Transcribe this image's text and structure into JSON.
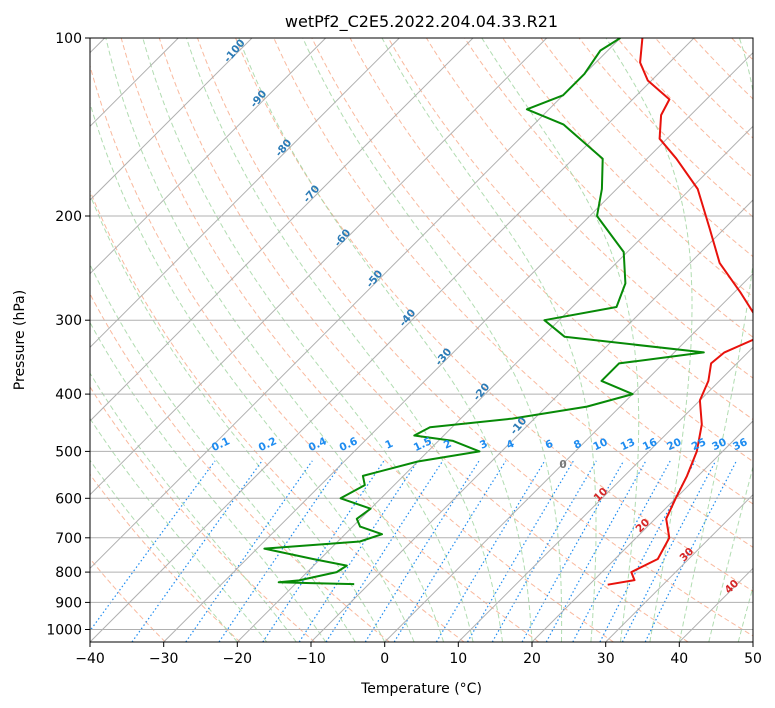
{
  "chart_data": {
    "type": "line",
    "title": "wetPf2_C2E5.2022.204.04.33.R21",
    "xlabel": "Temperature (°C)",
    "ylabel": "Pressure (hPa)",
    "xlim": [
      -40,
      50
    ],
    "ylim": [
      1050,
      100
    ],
    "y_scale": "log",
    "skew": "skew-T log-P",
    "grid": true,
    "x_ticks": [
      -40,
      -30,
      -20,
      -10,
      0,
      10,
      20,
      30,
      40,
      50
    ],
    "y_ticks": [
      1000,
      900,
      800,
      700,
      600,
      500,
      400,
      300,
      200,
      100
    ],
    "mixing_ratio_labels": [
      "0.1",
      "0.2",
      "0.4",
      "0.6",
      "1",
      "1.5",
      "2",
      "3",
      "4",
      "6",
      "8",
      "10",
      "13",
      "16",
      "20",
      "25",
      "30",
      "36"
    ],
    "dry_adiabat_labels": [
      "-100",
      "-90",
      "-80",
      "-70",
      "-60",
      "-50",
      "-40",
      "-30",
      "-20",
      "-10"
    ],
    "moist_adiabat_labels": [
      "10",
      "20",
      "30",
      "40"
    ],
    "zero_label": "0",
    "colors": {
      "temperature": "#e8120c",
      "dewpoint": "#078a07",
      "grid": "#b0b0b0",
      "dry_adiabat": "#f7a886",
      "moist_adiabat": "#a3d6a3",
      "mixing_ratio": "#1e8cf0"
    },
    "series": [
      {
        "points": [
          {
            "p": 840,
            "t": 22.5
          },
          {
            "p": 825,
            "t": 25.5
          },
          {
            "p": 800,
            "t": 24
          },
          {
            "p": 760,
            "t": 25.8
          },
          {
            "p": 700,
            "t": 24.5
          },
          {
            "p": 650,
            "t": 21.5
          },
          {
            "p": 600,
            "t": 20
          },
          {
            "p": 550,
            "t": 18.5
          },
          {
            "p": 500,
            "t": 16.5
          },
          {
            "p": 450,
            "t": 13.5
          },
          {
            "p": 410,
            "t": 10
          },
          {
            "p": 380,
            "t": 8.5
          },
          {
            "p": 355,
            "t": 6.5
          },
          {
            "p": 340,
            "t": 6.8
          },
          {
            "p": 320,
            "t": 9.5
          },
          {
            "p": 300,
            "t": 7
          },
          {
            "p": 270,
            "t": 1
          },
          {
            "p": 240,
            "t": -6
          },
          {
            "p": 210,
            "t": -12
          },
          {
            "p": 180,
            "t": -19
          },
          {
            "p": 160,
            "t": -26
          },
          {
            "p": 148,
            "t": -31
          },
          {
            "p": 135,
            "t": -34
          },
          {
            "p": 127,
            "t": -35
          },
          {
            "p": 118,
            "t": -40.5
          },
          {
            "p": 110,
            "t": -44
          },
          {
            "p": 100,
            "t": -47
          }
        ]
      },
      {
        "points": [
          {
            "p": 838,
            "t": -12
          },
          {
            "p": 835,
            "t": -18
          },
          {
            "p": 832,
            "t": -22.5
          },
          {
            "p": 826,
            "t": -20
          },
          {
            "p": 800,
            "t": -16
          },
          {
            "p": 780,
            "t": -15.5
          },
          {
            "p": 760,
            "t": -21
          },
          {
            "p": 730,
            "t": -29
          },
          {
            "p": 710,
            "t": -17
          },
          {
            "p": 690,
            "t": -15
          },
          {
            "p": 670,
            "t": -19
          },
          {
            "p": 650,
            "t": -20.5
          },
          {
            "p": 625,
            "t": -20
          },
          {
            "p": 600,
            "t": -25.5
          },
          {
            "p": 570,
            "t": -24
          },
          {
            "p": 550,
            "t": -25.5
          },
          {
            "p": 520,
            "t": -20
          },
          {
            "p": 500,
            "t": -13
          },
          {
            "p": 480,
            "t": -18
          },
          {
            "p": 470,
            "t": -24
          },
          {
            "p": 455,
            "t": -23
          },
          {
            "p": 440,
            "t": -13
          },
          {
            "p": 420,
            "t": -4.5
          },
          {
            "p": 400,
            "t": 0
          },
          {
            "p": 380,
            "t": -6
          },
          {
            "p": 355,
            "t": -6
          },
          {
            "p": 340,
            "t": 4
          },
          {
            "p": 320,
            "t": -17
          },
          {
            "p": 300,
            "t": -22
          },
          {
            "p": 285,
            "t": -14
          },
          {
            "p": 260,
            "t": -16
          },
          {
            "p": 230,
            "t": -20.5
          },
          {
            "p": 200,
            "t": -29
          },
          {
            "p": 180,
            "t": -32
          },
          {
            "p": 160,
            "t": -36
          },
          {
            "p": 140,
            "t": -46
          },
          {
            "p": 132,
            "t": -53
          },
          {
            "p": 125,
            "t": -50
          },
          {
            "p": 115,
            "t": -50
          },
          {
            "p": 105,
            "t": -51
          },
          {
            "p": 100,
            "t": -50
          }
        ]
      }
    ]
  }
}
